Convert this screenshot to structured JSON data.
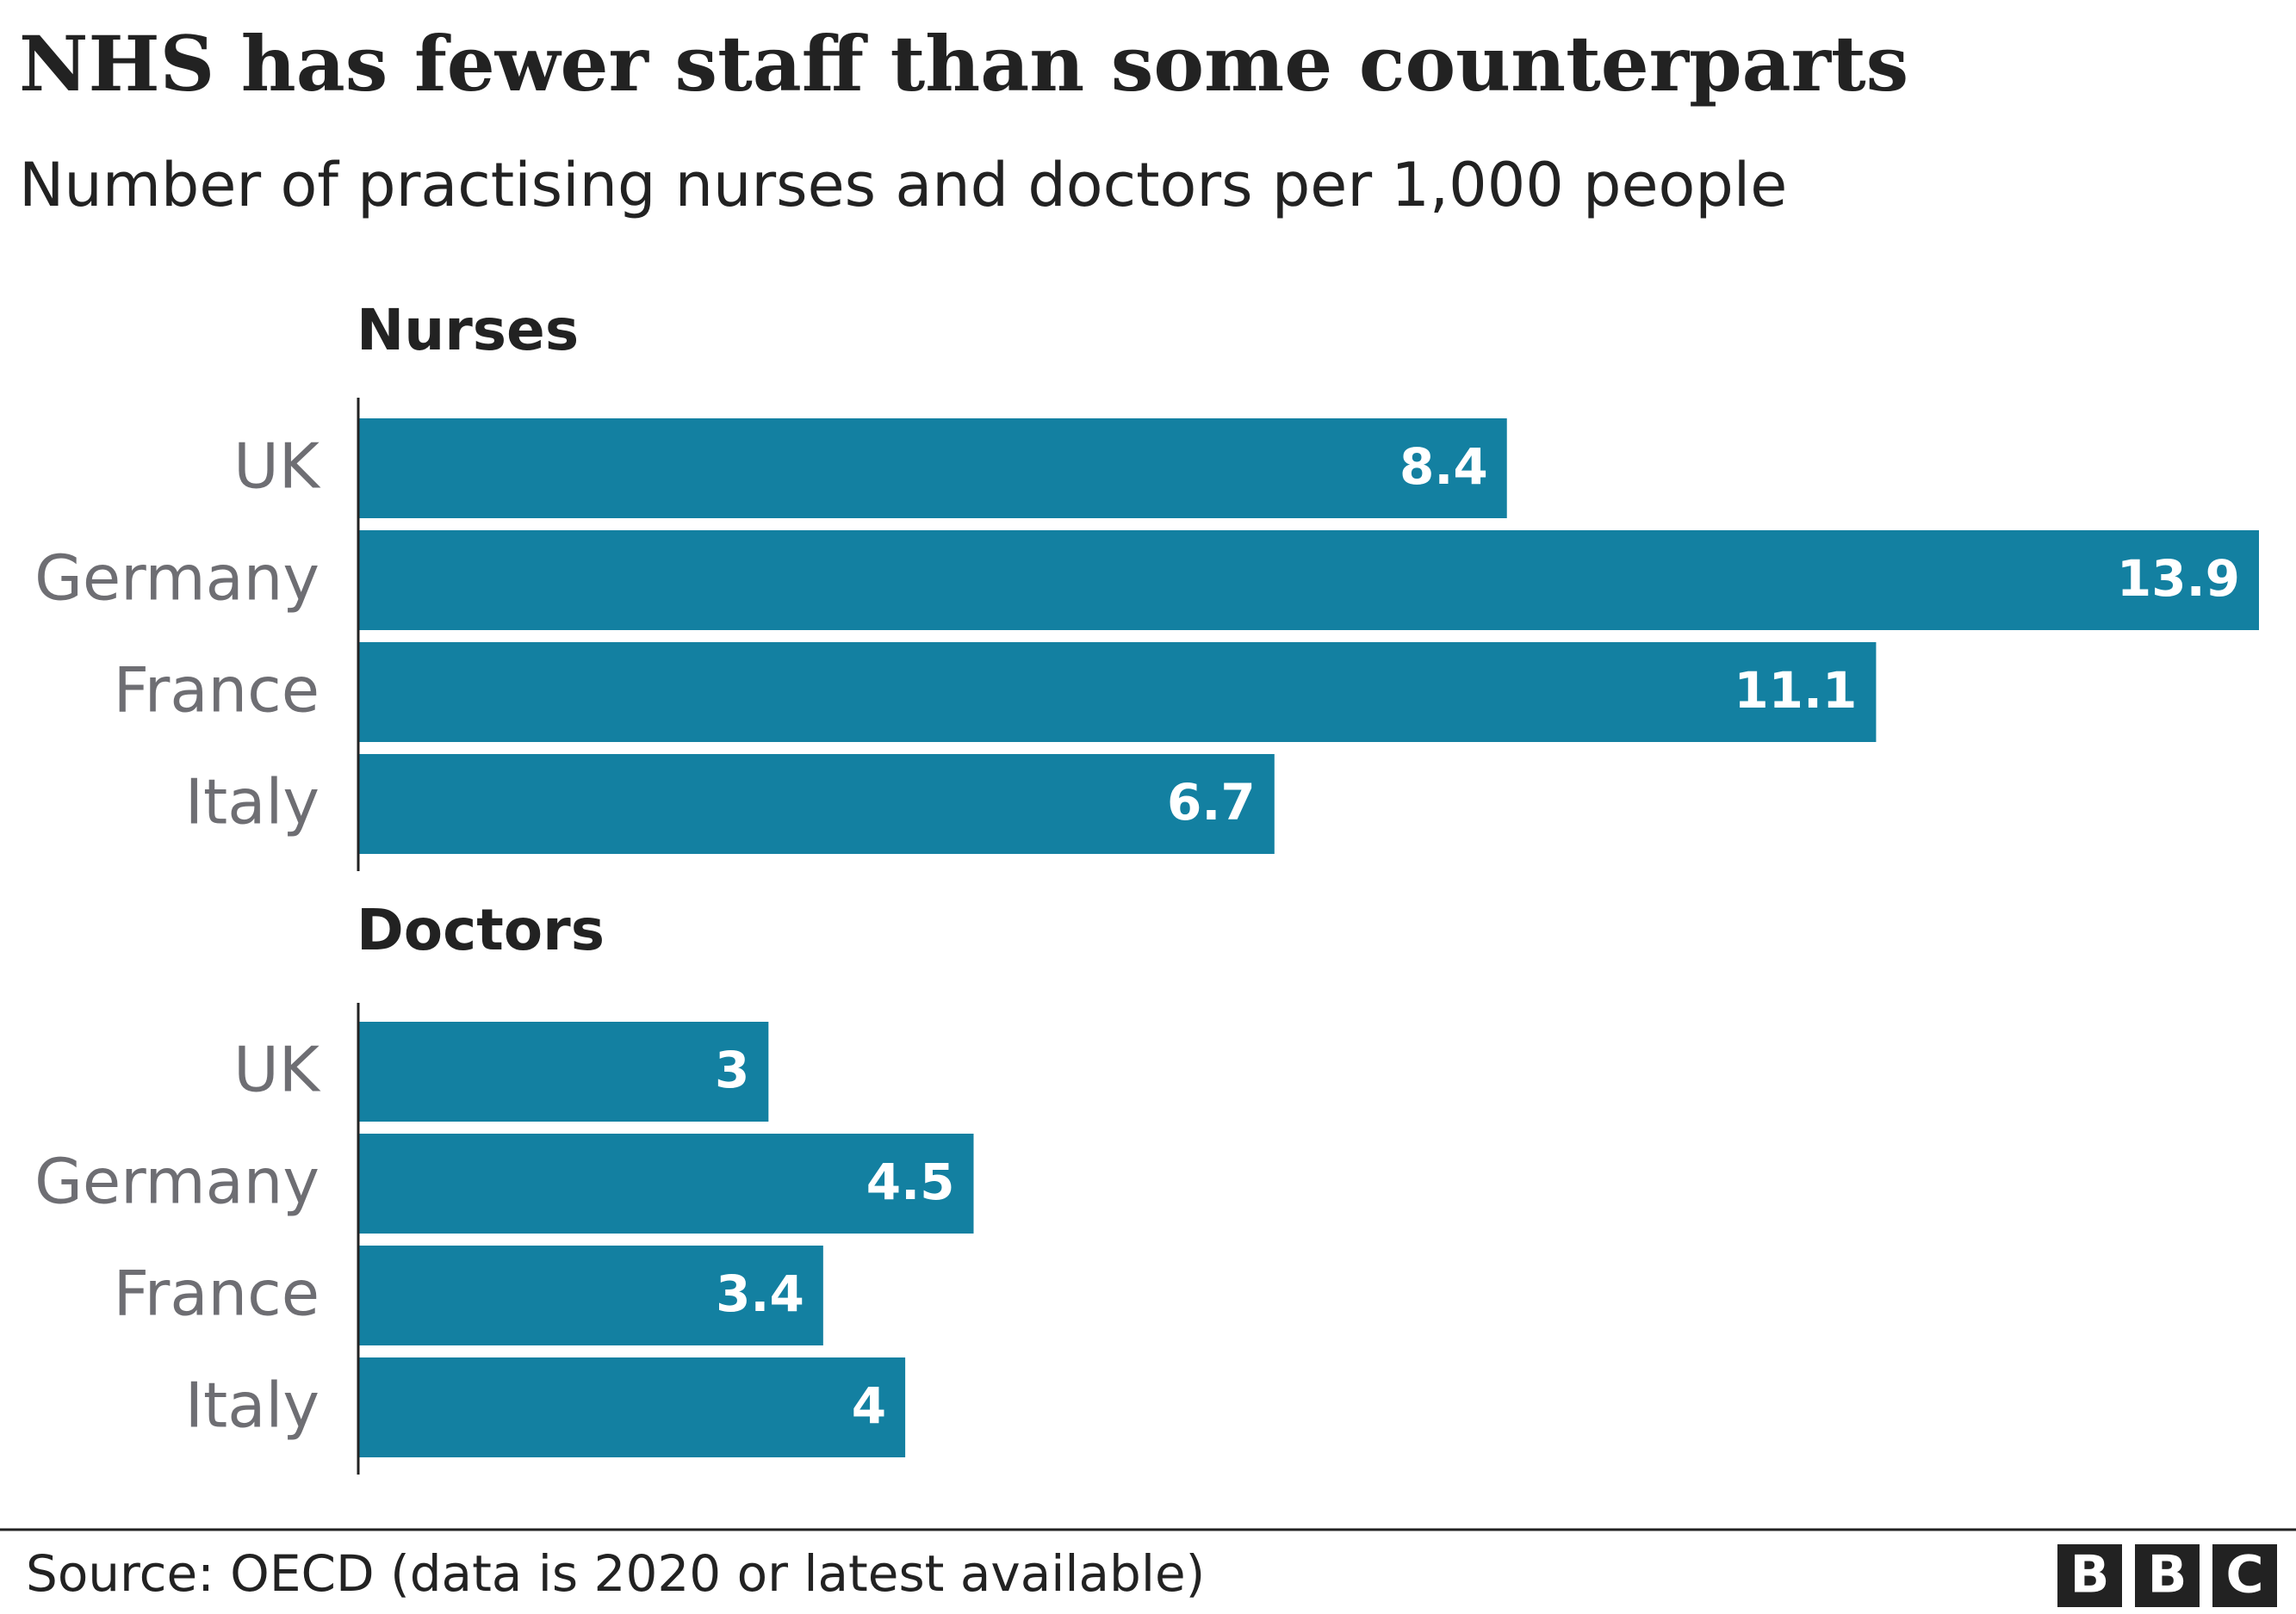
{
  "title": "NHS has fewer staff than some counterparts",
  "subtitle": "Number of practising nurses and doctors per 1,000 people",
  "source": "Source: OECD (data is 2020 or latest available)",
  "logo": [
    "B",
    "B",
    "C"
  ],
  "chart_data": [
    {
      "type": "bar",
      "orientation": "horizontal",
      "title": "Nurses",
      "categories": [
        "UK",
        "Germany",
        "France",
        "Italy"
      ],
      "values": [
        8.4,
        13.9,
        11.1,
        6.7
      ],
      "color": "#1380a1",
      "xlim": [
        0,
        13.9
      ]
    },
    {
      "type": "bar",
      "orientation": "horizontal",
      "title": "Doctors",
      "categories": [
        "UK",
        "Germany",
        "France",
        "Italy"
      ],
      "values": [
        3,
        4.5,
        3.4,
        4
      ],
      "color": "#1380a1",
      "xlim": [
        0,
        13.9
      ]
    }
  ]
}
